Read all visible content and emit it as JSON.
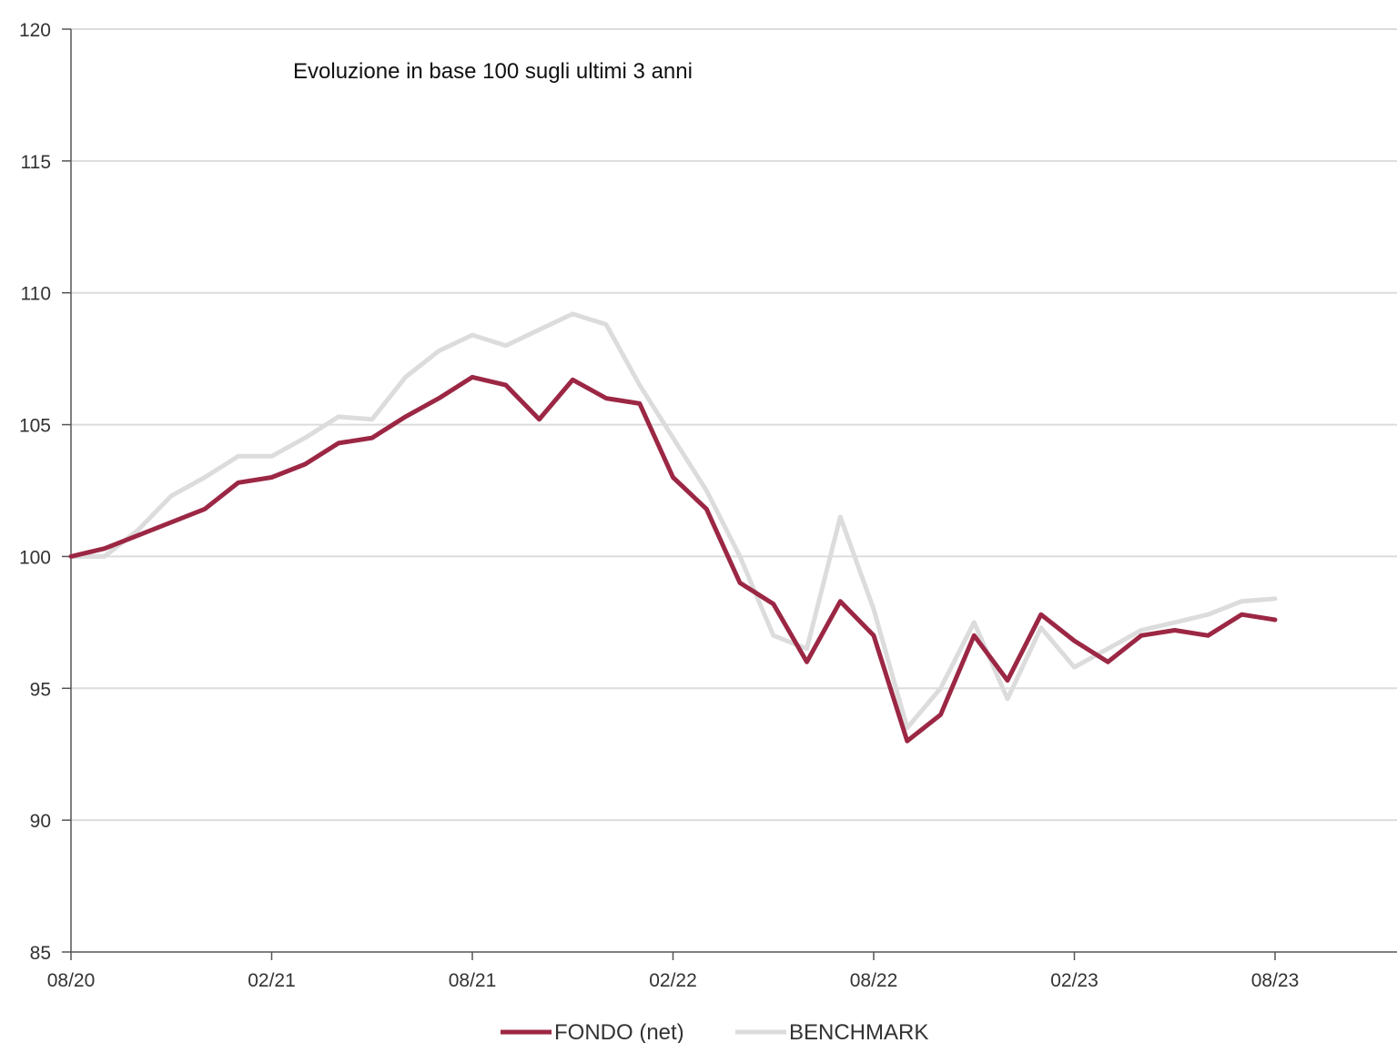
{
  "chart_data": {
    "type": "line",
    "title": "Evoluzione in base 100 sugli ultimi 3 anni",
    "xlabel": "",
    "ylabel": "",
    "x_ticks": [
      "08/20",
      "02/21",
      "08/21",
      "02/22",
      "08/22",
      "02/23",
      "08/23"
    ],
    "ylim": [
      85,
      120
    ],
    "y_ticks": [
      85,
      90,
      95,
      100,
      105,
      110,
      115,
      120
    ],
    "grid": "horizontal",
    "legend_position": "bottom-center",
    "x": [
      "08/20",
      "09/20",
      "10/20",
      "11/20",
      "12/20",
      "01/21",
      "02/21",
      "03/21",
      "04/21",
      "05/21",
      "06/21",
      "07/21",
      "08/21",
      "09/21",
      "10/21",
      "11/21",
      "12/21",
      "01/22",
      "02/22",
      "03/22",
      "04/22",
      "05/22",
      "06/22",
      "07/22",
      "08/22",
      "09/22",
      "10/22",
      "11/22",
      "12/22",
      "01/23",
      "02/23",
      "03/23",
      "04/23",
      "05/23",
      "06/23",
      "07/23",
      "08/23"
    ],
    "series": [
      {
        "name": "FONDO (net)",
        "color": "#9b2744",
        "values": [
          100.0,
          100.3,
          100.8,
          101.3,
          101.8,
          102.8,
          103.0,
          103.5,
          104.3,
          104.5,
          105.3,
          106.0,
          106.8,
          106.5,
          105.2,
          106.7,
          106.0,
          105.8,
          103.0,
          101.8,
          99.0,
          98.2,
          96.0,
          98.3,
          97.0,
          93.0,
          94.0,
          97.0,
          95.3,
          97.8,
          96.8,
          96.0,
          97.0,
          97.2,
          97.0,
          97.8,
          97.6
        ]
      },
      {
        "name": "BENCHMARK",
        "color": "#dcdcdc",
        "values": [
          100.0,
          100.0,
          101.0,
          102.3,
          103.0,
          103.8,
          103.8,
          104.5,
          105.3,
          105.2,
          106.8,
          107.8,
          108.4,
          108.0,
          108.6,
          109.2,
          108.8,
          106.5,
          104.5,
          102.5,
          100.0,
          97.0,
          96.5,
          101.5,
          98.0,
          93.5,
          95.0,
          97.5,
          94.6,
          97.3,
          95.8,
          96.5,
          97.2,
          97.5,
          97.8,
          98.3,
          98.4
        ]
      }
    ]
  }
}
